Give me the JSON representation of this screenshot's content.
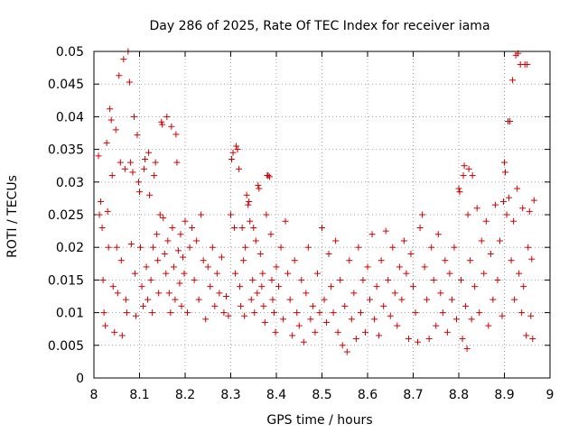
{
  "chart_data": {
    "type": "scatter",
    "title": "Day 286 of 2025, Rate Of TEC Index for receiver iama",
    "xlabel": "GPS time / hours",
    "ylabel": "ROTI / TECUs",
    "xlim": [
      8,
      9
    ],
    "ylim": [
      0,
      0.05
    ],
    "xticks": [
      "8",
      "8.1",
      "8.2",
      "8.3",
      "8.4",
      "8.5",
      "8.6",
      "8.7",
      "8.8",
      "8.9",
      "9"
    ],
    "yticks": [
      "0",
      "0.005",
      "0.01",
      "0.015",
      "0.02",
      "0.025",
      "0.03",
      "0.035",
      "0.04",
      "0.045",
      "0.05"
    ],
    "grid": true,
    "marker": "+",
    "color": "#d00000",
    "series": [
      {
        "name": "ROTI",
        "points": [
          [
            8.01,
            0.034
          ],
          [
            8.012,
            0.025
          ],
          [
            8.015,
            0.027
          ],
          [
            8.018,
            0.023
          ],
          [
            8.02,
            0.015
          ],
          [
            8.022,
            0.01
          ],
          [
            8.025,
            0.008
          ],
          [
            8.028,
            0.036
          ],
          [
            8.03,
            0.0255
          ],
          [
            8.032,
            0.02
          ],
          [
            8.035,
            0.0412
          ],
          [
            8.038,
            0.0395
          ],
          [
            8.04,
            0.031
          ],
          [
            8.042,
            0.014
          ],
          [
            8.045,
            0.007
          ],
          [
            8.048,
            0.038
          ],
          [
            8.05,
            0.02
          ],
          [
            8.052,
            0.013
          ],
          [
            8.055,
            0.0463
          ],
          [
            8.058,
            0.033
          ],
          [
            8.06,
            0.018
          ],
          [
            8.062,
            0.0065
          ],
          [
            8.065,
            0.0488
          ],
          [
            8.068,
            0.032
          ],
          [
            8.07,
            0.012
          ],
          [
            8.072,
            0.01
          ],
          [
            8.075,
            0.05
          ],
          [
            8.078,
            0.0453
          ],
          [
            8.08,
            0.033
          ],
          [
            8.082,
            0.0205
          ],
          [
            8.085,
            0.0315
          ],
          [
            8.088,
            0.04
          ],
          [
            8.09,
            0.016
          ],
          [
            8.092,
            0.0095
          ],
          [
            8.095,
            0.0372
          ],
          [
            8.098,
            0.03
          ],
          [
            8.1,
            0.0285
          ],
          [
            8.102,
            0.02
          ],
          [
            8.105,
            0.014
          ],
          [
            8.108,
            0.011
          ],
          [
            8.11,
            0.032
          ],
          [
            8.112,
            0.0335
          ],
          [
            8.115,
            0.017
          ],
          [
            8.118,
            0.012
          ],
          [
            8.12,
            0.0345
          ],
          [
            8.122,
            0.028
          ],
          [
            8.125,
            0.015
          ],
          [
            8.128,
            0.01
          ],
          [
            8.13,
            0.02
          ],
          [
            8.132,
            0.031
          ],
          [
            8.135,
            0.033
          ],
          [
            8.138,
            0.022
          ],
          [
            8.14,
            0.018
          ],
          [
            8.142,
            0.013
          ],
          [
            8.145,
            0.025
          ],
          [
            8.148,
            0.0392
          ],
          [
            8.15,
            0.0388
          ],
          [
            8.152,
            0.0245
          ],
          [
            8.155,
            0.019
          ],
          [
            8.158,
            0.016
          ],
          [
            8.16,
            0.04
          ],
          [
            8.162,
            0.021
          ],
          [
            8.165,
            0.013
          ],
          [
            8.168,
            0.01
          ],
          [
            8.17,
            0.0385
          ],
          [
            8.172,
            0.023
          ],
          [
            8.175,
            0.017
          ],
          [
            8.178,
            0.012
          ],
          [
            8.18,
            0.0373
          ],
          [
            8.182,
            0.033
          ],
          [
            8.185,
            0.0195
          ],
          [
            8.188,
            0.0145
          ],
          [
            8.19,
            0.022
          ],
          [
            8.192,
            0.011
          ],
          [
            8.195,
            0.0185
          ],
          [
            8.198,
            0.016
          ],
          [
            8.2,
            0.024
          ],
          [
            8.205,
            0.01
          ],
          [
            8.21,
            0.02
          ],
          [
            8.215,
            0.023
          ],
          [
            8.22,
            0.015
          ],
          [
            8.225,
            0.021
          ],
          [
            8.23,
            0.012
          ],
          [
            8.235,
            0.025
          ],
          [
            8.24,
            0.018
          ],
          [
            8.245,
            0.009
          ],
          [
            8.25,
            0.017
          ],
          [
            8.255,
            0.014
          ],
          [
            8.26,
            0.02
          ],
          [
            8.265,
            0.011
          ],
          [
            8.27,
            0.016
          ],
          [
            8.275,
            0.013
          ],
          [
            8.28,
            0.0185
          ],
          [
            8.285,
            0.01
          ],
          [
            8.29,
            0.0125
          ],
          [
            8.295,
            0.0095
          ],
          [
            8.3,
            0.025
          ],
          [
            8.302,
            0.0335
          ],
          [
            8.305,
            0.0345
          ],
          [
            8.308,
            0.023
          ],
          [
            8.31,
            0.016
          ],
          [
            8.312,
            0.0355
          ],
          [
            8.315,
            0.035
          ],
          [
            8.318,
            0.032
          ],
          [
            8.32,
            0.014
          ],
          [
            8.322,
            0.011
          ],
          [
            8.325,
            0.023
          ],
          [
            8.328,
            0.018
          ],
          [
            8.33,
            0.0095
          ],
          [
            8.332,
            0.02
          ],
          [
            8.335,
            0.028
          ],
          [
            8.338,
            0.0265
          ],
          [
            8.34,
            0.027
          ],
          [
            8.342,
            0.024
          ],
          [
            8.345,
            0.012
          ],
          [
            8.348,
            0.015
          ],
          [
            8.35,
            0.023
          ],
          [
            8.352,
            0.01
          ],
          [
            8.355,
            0.021
          ],
          [
            8.358,
            0.013
          ],
          [
            8.36,
            0.0295
          ],
          [
            8.362,
            0.029
          ],
          [
            8.365,
            0.019
          ],
          [
            8.368,
            0.014
          ],
          [
            8.37,
            0.016
          ],
          [
            8.372,
            0.011
          ],
          [
            8.375,
            0.0085
          ],
          [
            8.378,
            0.025
          ],
          [
            8.38,
            0.031
          ],
          [
            8.382,
            0.031
          ],
          [
            8.385,
            0.0308
          ],
          [
            8.388,
            0.022
          ],
          [
            8.39,
            0.015
          ],
          [
            8.392,
            0.012
          ],
          [
            8.395,
            0.01
          ],
          [
            8.398,
            0.007
          ],
          [
            8.4,
            0.017
          ],
          [
            8.405,
            0.014
          ],
          [
            8.41,
            0.02
          ],
          [
            8.415,
            0.009
          ],
          [
            8.42,
            0.024
          ],
          [
            8.425,
            0.016
          ],
          [
            8.43,
            0.012
          ],
          [
            8.435,
            0.0065
          ],
          [
            8.44,
            0.018
          ],
          [
            8.445,
            0.01
          ],
          [
            8.45,
            0.008
          ],
          [
            8.455,
            0.015
          ],
          [
            8.46,
            0.0055
          ],
          [
            8.465,
            0.013
          ],
          [
            8.47,
            0.02
          ],
          [
            8.475,
            0.009
          ],
          [
            8.48,
            0.011
          ],
          [
            8.485,
            0.007
          ],
          [
            8.49,
            0.016
          ],
          [
            8.495,
            0.01
          ],
          [
            8.5,
            0.023
          ],
          [
            8.505,
            0.012
          ],
          [
            8.51,
            0.0085
          ],
          [
            8.515,
            0.019
          ],
          [
            8.52,
            0.014
          ],
          [
            8.525,
            0.01
          ],
          [
            8.53,
            0.021
          ],
          [
            8.535,
            0.007
          ],
          [
            8.54,
            0.015
          ],
          [
            8.545,
            0.005
          ],
          [
            8.55,
            0.011
          ],
          [
            8.555,
            0.004
          ],
          [
            8.56,
            0.018
          ],
          [
            8.565,
            0.009
          ],
          [
            8.57,
            0.013
          ],
          [
            8.575,
            0.006
          ],
          [
            8.58,
            0.02
          ],
          [
            8.585,
            0.01
          ],
          [
            8.59,
            0.015
          ],
          [
            8.595,
            0.007
          ],
          [
            8.6,
            0.017
          ],
          [
            8.605,
            0.012
          ],
          [
            8.61,
            0.022
          ],
          [
            8.615,
            0.009
          ],
          [
            8.62,
            0.014
          ],
          [
            8.625,
            0.0065
          ],
          [
            8.63,
            0.018
          ],
          [
            8.635,
            0.011
          ],
          [
            8.64,
            0.0225
          ],
          [
            8.645,
            0.015
          ],
          [
            8.65,
            0.0095
          ],
          [
            8.655,
            0.02
          ],
          [
            8.66,
            0.013
          ],
          [
            8.665,
            0.008
          ],
          [
            8.67,
            0.017
          ],
          [
            8.675,
            0.012
          ],
          [
            8.68,
            0.021
          ],
          [
            8.685,
            0.016
          ],
          [
            8.69,
            0.006
          ],
          [
            8.695,
            0.019
          ],
          [
            8.7,
            0.014
          ],
          [
            8.705,
            0.01
          ],
          [
            8.71,
            0.0055
          ],
          [
            8.715,
            0.023
          ],
          [
            8.72,
            0.025
          ],
          [
            8.725,
            0.017
          ],
          [
            8.73,
            0.012
          ],
          [
            8.735,
            0.006
          ],
          [
            8.74,
            0.02
          ],
          [
            8.745,
            0.015
          ],
          [
            8.75,
            0.008
          ],
          [
            8.755,
            0.022
          ],
          [
            8.76,
            0.013
          ],
          [
            8.765,
            0.01
          ],
          [
            8.77,
            0.018
          ],
          [
            8.775,
            0.007
          ],
          [
            8.78,
            0.016
          ],
          [
            8.785,
            0.012
          ],
          [
            8.79,
            0.02
          ],
          [
            8.795,
            0.009
          ],
          [
            8.8,
            0.029
          ],
          [
            8.802,
            0.0285
          ],
          [
            8.805,
            0.015
          ],
          [
            8.808,
            0.006
          ],
          [
            8.81,
            0.031
          ],
          [
            8.812,
            0.0325
          ],
          [
            8.815,
            0.011
          ],
          [
            8.818,
            0.0045
          ],
          [
            8.82,
            0.025
          ],
          [
            8.822,
            0.032
          ],
          [
            8.825,
            0.018
          ],
          [
            8.828,
            0.009
          ],
          [
            8.83,
            0.031
          ],
          [
            8.835,
            0.014
          ],
          [
            8.84,
            0.026
          ],
          [
            8.845,
            0.01
          ],
          [
            8.85,
            0.021
          ],
          [
            8.855,
            0.016
          ],
          [
            8.86,
            0.024
          ],
          [
            8.865,
            0.008
          ],
          [
            8.87,
            0.019
          ],
          [
            8.875,
            0.012
          ],
          [
            8.88,
            0.0265
          ],
          [
            8.885,
            0.015
          ],
          [
            8.89,
            0.021
          ],
          [
            8.895,
            0.0095
          ],
          [
            8.898,
            0.027
          ],
          [
            8.9,
            0.033
          ],
          [
            8.902,
            0.0315
          ],
          [
            8.905,
            0.025
          ],
          [
            8.908,
            0.0393
          ],
          [
            8.91,
            0.0276
          ],
          [
            8.912,
            0.0393
          ],
          [
            8.915,
            0.018
          ],
          [
            8.918,
            0.0456
          ],
          [
            8.92,
            0.024
          ],
          [
            8.922,
            0.012
          ],
          [
            8.925,
            0.0494
          ],
          [
            8.928,
            0.029
          ],
          [
            8.93,
            0.0497
          ],
          [
            8.932,
            0.016
          ],
          [
            8.935,
            0.048
          ],
          [
            8.938,
            0.01
          ],
          [
            8.94,
            0.026
          ],
          [
            8.942,
            0.014
          ],
          [
            8.945,
            0.048
          ],
          [
            8.948,
            0.0065
          ],
          [
            8.95,
            0.048
          ],
          [
            8.952,
            0.02
          ],
          [
            8.955,
            0.0255
          ],
          [
            8.958,
            0.0095
          ],
          [
            8.96,
            0.0182
          ],
          [
            8.962,
            0.006
          ],
          [
            8.965,
            0.0272
          ]
        ]
      }
    ]
  }
}
